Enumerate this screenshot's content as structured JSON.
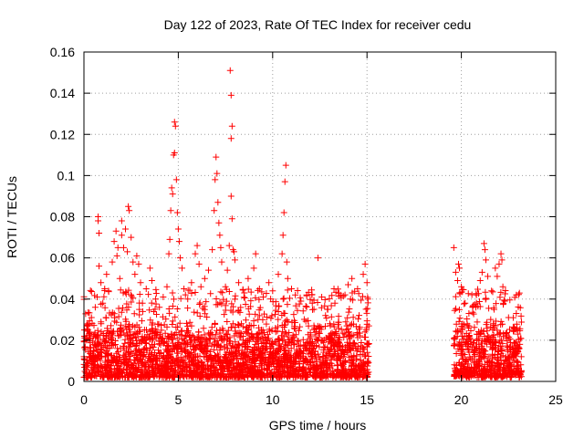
{
  "chart_data": {
    "type": "scatter",
    "title": "Day 122 of 2023, Rate Of TEC Index for receiver cedu",
    "xlabel": "GPS time / hours",
    "ylabel": "ROTI / TECUs",
    "xlim": [
      0,
      25
    ],
    "ylim": [
      0,
      0.16
    ],
    "xticks": [
      "0",
      "5",
      "10",
      "15",
      "20",
      "25"
    ],
    "yticks": [
      "0",
      "0.02",
      "0.04",
      "0.06",
      "0.08",
      "0.1",
      "0.12",
      "0.14",
      "0.16"
    ],
    "grid": true,
    "legend": "none",
    "marker": "plus",
    "color": "#ff0000",
    "series": [
      {
        "points": [
          [
            0.0,
            0.012
          ],
          [
            0.1,
            0.02
          ],
          [
            0.2,
            0.028
          ],
          [
            0.3,
            0.024
          ],
          [
            0.4,
            0.031
          ],
          [
            0.5,
            0.015
          ],
          [
            0.6,
            0.036
          ],
          [
            0.7,
            0.041
          ],
          [
            0.75,
            0.08
          ],
          [
            0.75,
            0.078
          ],
          [
            0.8,
            0.072
          ],
          [
            0.8,
            0.056
          ],
          [
            0.9,
            0.048
          ],
          [
            1.0,
            0.038
          ],
          [
            1.1,
            0.045
          ],
          [
            1.2,
            0.052
          ],
          [
            1.3,
            0.044
          ],
          [
            1.5,
            0.058
          ],
          [
            1.6,
            0.068
          ],
          [
            1.7,
            0.073
          ],
          [
            1.75,
            0.061
          ],
          [
            1.8,
            0.065
          ],
          [
            1.9,
            0.05
          ],
          [
            2.0,
            0.078
          ],
          [
            2.0,
            0.071
          ],
          [
            2.1,
            0.065
          ],
          [
            2.2,
            0.074
          ],
          [
            2.3,
            0.063
          ],
          [
            2.35,
            0.085
          ],
          [
            2.4,
            0.083
          ],
          [
            2.5,
            0.07
          ],
          [
            2.6,
            0.058
          ],
          [
            2.7,
            0.052
          ],
          [
            2.8,
            0.061
          ],
          [
            2.9,
            0.057
          ],
          [
            3.0,
            0.048
          ],
          [
            3.1,
            0.038
          ],
          [
            3.3,
            0.045
          ],
          [
            3.5,
            0.055
          ],
          [
            3.6,
            0.049
          ],
          [
            3.8,
            0.04
          ],
          [
            4.0,
            0.036
          ],
          [
            4.2,
            0.041
          ],
          [
            4.4,
            0.046
          ],
          [
            4.5,
            0.062
          ],
          [
            4.55,
            0.069
          ],
          [
            4.6,
            0.083
          ],
          [
            4.65,
            0.094
          ],
          [
            4.7,
            0.091
          ],
          [
            4.75,
            0.11
          ],
          [
            4.8,
            0.126
          ],
          [
            4.85,
            0.124
          ],
          [
            4.8,
            0.111
          ],
          [
            4.9,
            0.098
          ],
          [
            4.95,
            0.082
          ],
          [
            5.0,
            0.074
          ],
          [
            5.05,
            0.068
          ],
          [
            5.1,
            0.06
          ],
          [
            5.2,
            0.055
          ],
          [
            5.3,
            0.045
          ],
          [
            5.5,
            0.04
          ],
          [
            5.7,
            0.048
          ],
          [
            5.9,
            0.062
          ],
          [
            6.0,
            0.066
          ],
          [
            6.1,
            0.057
          ],
          [
            6.2,
            0.046
          ],
          [
            6.4,
            0.05
          ],
          [
            6.6,
            0.054
          ],
          [
            6.8,
            0.064
          ],
          [
            6.9,
            0.083
          ],
          [
            6.95,
            0.098
          ],
          [
            7.0,
            0.109
          ],
          [
            7.05,
            0.101
          ],
          [
            7.1,
            0.087
          ],
          [
            7.15,
            0.077
          ],
          [
            7.2,
            0.071
          ],
          [
            7.25,
            0.065
          ],
          [
            7.3,
            0.058
          ],
          [
            7.5,
            0.046
          ],
          [
            7.6,
            0.054
          ],
          [
            7.7,
            0.066
          ],
          [
            7.75,
            0.151
          ],
          [
            7.8,
            0.139
          ],
          [
            7.85,
            0.124
          ],
          [
            7.8,
            0.118
          ],
          [
            7.8,
            0.09
          ],
          [
            7.85,
            0.079
          ],
          [
            7.9,
            0.064
          ],
          [
            7.95,
            0.063
          ],
          [
            8.0,
            0.059
          ],
          [
            8.2,
            0.048
          ],
          [
            8.5,
            0.043
          ],
          [
            8.7,
            0.05
          ],
          [
            9.0,
            0.055
          ],
          [
            9.1,
            0.062
          ],
          [
            9.3,
            0.045
          ],
          [
            9.5,
            0.041
          ],
          [
            9.8,
            0.048
          ],
          [
            10.0,
            0.044
          ],
          [
            10.3,
            0.052
          ],
          [
            10.5,
            0.062
          ],
          [
            10.55,
            0.071
          ],
          [
            10.6,
            0.082
          ],
          [
            10.65,
            0.097
          ],
          [
            10.7,
            0.105
          ],
          [
            10.75,
            0.058
          ],
          [
            10.8,
            0.05
          ],
          [
            11.0,
            0.045
          ],
          [
            11.2,
            0.042
          ],
          [
            11.5,
            0.039
          ],
          [
            11.8,
            0.042
          ],
          [
            12.1,
            0.038
          ],
          [
            12.4,
            0.06
          ],
          [
            12.6,
            0.041
          ],
          [
            12.9,
            0.035
          ],
          [
            13.3,
            0.038
          ],
          [
            13.6,
            0.042
          ],
          [
            14.0,
            0.047
          ],
          [
            14.2,
            0.05
          ],
          [
            14.5,
            0.045
          ],
          [
            14.8,
            0.052
          ],
          [
            14.9,
            0.057
          ],
          [
            15.0,
            0.048
          ],
          [
            15.05,
            0.04
          ],
          [
            19.6,
            0.065
          ],
          [
            19.7,
            0.053
          ],
          [
            19.8,
            0.049
          ],
          [
            19.85,
            0.057
          ],
          [
            19.9,
            0.055
          ],
          [
            20.0,
            0.046
          ],
          [
            20.2,
            0.038
          ],
          [
            20.4,
            0.033
          ],
          [
            20.6,
            0.036
          ],
          [
            20.8,
            0.042
          ],
          [
            21.0,
            0.049
          ],
          [
            21.1,
            0.053
          ],
          [
            21.2,
            0.067
          ],
          [
            21.25,
            0.064
          ],
          [
            21.3,
            0.059
          ],
          [
            21.4,
            0.051
          ],
          [
            21.6,
            0.044
          ],
          [
            21.8,
            0.055
          ],
          [
            21.9,
            0.051
          ],
          [
            22.0,
            0.057
          ],
          [
            22.1,
            0.062
          ],
          [
            22.15,
            0.059
          ],
          [
            22.2,
            0.046
          ],
          [
            22.3,
            0.039
          ],
          [
            22.5,
            0.031
          ],
          [
            22.8,
            0.026
          ],
          [
            23.0,
            0.023
          ],
          [
            23.1,
            0.018
          ]
        ],
        "dense_segments": [
          {
            "from": 0.0,
            "to": 15.1,
            "y_min": 0.002,
            "y_max": 0.03
          },
          {
            "from": 19.6,
            "to": 23.2,
            "y_min": 0.002,
            "y_max": 0.03
          }
        ]
      }
    ]
  }
}
